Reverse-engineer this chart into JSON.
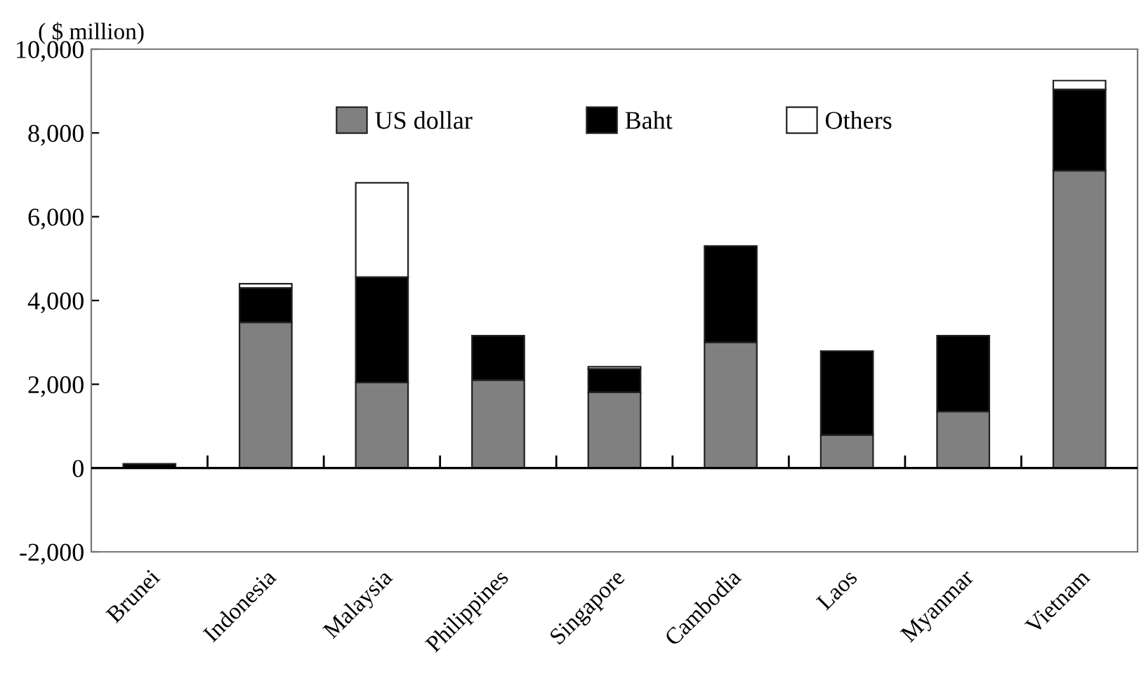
{
  "chart_data": {
    "type": "bar",
    "stacked": true,
    "ylabel": "( $ million)",
    "categories": [
      "Brunei",
      "Indonesia",
      "Malaysia",
      "Philippines",
      "Singapore",
      "Cambodia",
      "Laos",
      "Myanmar",
      "Vietnam"
    ],
    "series": [
      {
        "name": "US dollar",
        "color": "#808080",
        "values": [
          null,
          3480,
          2040,
          2100,
          1810,
          3000,
          790,
          1350,
          7100
        ]
      },
      {
        "name": "Baht",
        "color": "#000000",
        "values": [
          100,
          820,
          2520,
          1060,
          560,
          2300,
          2000,
          1810,
          1940
        ]
      },
      {
        "name": "Others",
        "color": "#ffffff",
        "values": [
          null,
          100,
          2250,
          null,
          50,
          null,
          null,
          null,
          210
        ]
      }
    ],
    "ylim": [
      -2000,
      10000
    ],
    "yticks": [
      {
        "value": -2000,
        "label": "-2,000"
      },
      0,
      {
        "value": 2000,
        "label": "2,000"
      },
      {
        "value": 4000,
        "label": "4,000"
      },
      {
        "value": 6000,
        "label": "6,000"
      },
      {
        "value": 8000,
        "label": "8,000"
      },
      {
        "value": 10000,
        "label": "10,000"
      }
    ],
    "ref_lines": [
      {
        "axis": "y",
        "value": 0,
        "color": "#000000"
      }
    ],
    "grid": false,
    "legend": "top"
  }
}
